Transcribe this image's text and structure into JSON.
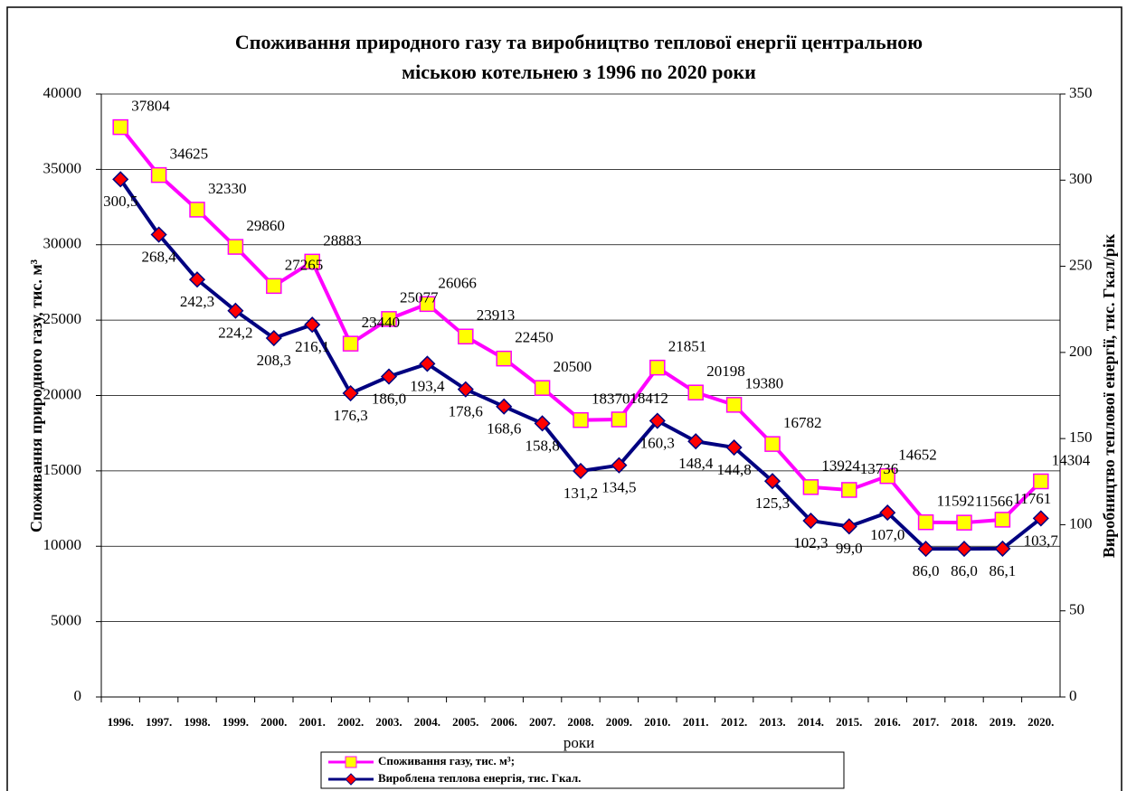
{
  "chart_data": {
    "type": "line",
    "title": "Споживання природного газу та виробництво теплової енергії центральною",
    "subtitle": "міською котельнею з 1996 по 2020 роки",
    "x_label": "роки",
    "y_label": "Споживання природного газу, тис. м³",
    "y2_label": "Виробництво теплової енергії, тис. Гкал/рік",
    "categories": [
      "1996.",
      "1997.",
      "1998.",
      "1999.",
      "2000.",
      "2001.",
      "2002.",
      "2003.",
      "2004.",
      "2005.",
      "2006.",
      "2007.",
      "2008.",
      "2009.",
      "2010.",
      "2011.",
      "2012.",
      "2013.",
      "2014.",
      "2015.",
      "2016.",
      "2017.",
      "2018.",
      "2019.",
      "2020."
    ],
    "ylim": [
      0,
      40000
    ],
    "yticks": [
      0,
      5000,
      10000,
      15000,
      20000,
      25000,
      30000,
      35000,
      40000
    ],
    "y2lim": [
      0,
      350
    ],
    "y2ticks": [
      0,
      50,
      100,
      150,
      200,
      250,
      300,
      350
    ],
    "grid": true,
    "series": [
      {
        "name": "Споживання газу, тис. м³;",
        "color": "#ff00ff",
        "marker_color": "#ffff00",
        "values": [
          37804,
          34625,
          32330,
          29860,
          27265,
          28883,
          23440,
          25077,
          26066,
          23913,
          22450,
          20500,
          18370,
          18412,
          21851,
          20198,
          19380,
          16782,
          13924,
          13736,
          14652,
          11592,
          11566,
          11761,
          14304
        ]
      },
      {
        "name": "Вироблена теплова енергія, тис. Гкал.",
        "color": "#000080",
        "marker_color": "#ff0000",
        "axis": "y2",
        "values": [
          300.5,
          268.4,
          242.3,
          224.2,
          208.3,
          216.1,
          176.3,
          186.0,
          193.4,
          178.6,
          168.6,
          158.8,
          131.2,
          134.5,
          160.3,
          148.4,
          144.8,
          125.3,
          102.3,
          99.0,
          107.0,
          86.0,
          86.0,
          86.1,
          103.7
        ],
        "value_labels": [
          "300,5",
          "268,4",
          "242,3",
          "224,2",
          "208,3",
          "216,1",
          "176,3",
          "186,0",
          "193,4",
          "178,6",
          "168,6",
          "158,8",
          "131,2",
          "134,5",
          "160,3",
          "148,4",
          "144,8",
          "125,3",
          "102,3",
          "99,0",
          "107,0",
          "86,0",
          "86,0",
          "86,1",
          "103,7"
        ]
      }
    ]
  }
}
